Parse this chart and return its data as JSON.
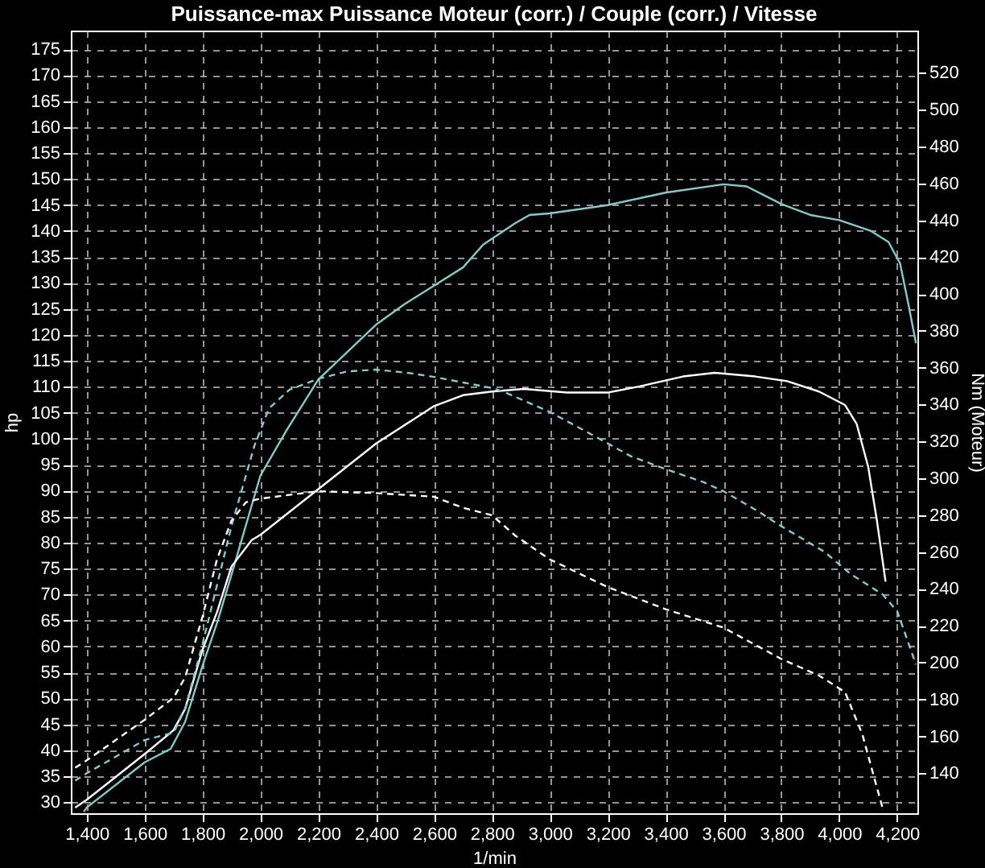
{
  "chart_data": {
    "type": "line",
    "title": "Puissance-max Puissance Moteur (corr.) / Couple (corr.) / Vitesse",
    "xlabel": "1/min",
    "ylabel": "hp",
    "y2label": "Nm (Moteur)",
    "xlim": [
      1345,
      4270
    ],
    "xticks": [
      {
        "value": 1400,
        "label": "1,400"
      },
      {
        "value": 1600,
        "label": "1,600"
      },
      {
        "value": 1800,
        "label": "1,800"
      },
      {
        "value": 2000,
        "label": "2,000"
      },
      {
        "value": 2200,
        "label": "2,200"
      },
      {
        "value": 2400,
        "label": "2,400"
      },
      {
        "value": 2600,
        "label": "2,600"
      },
      {
        "value": 2800,
        "label": "2,800"
      },
      {
        "value": 3000,
        "label": "3,000"
      },
      {
        "value": 3200,
        "label": "3,200"
      },
      {
        "value": 3400,
        "label": "3,400"
      },
      {
        "value": 3600,
        "label": "3,600"
      },
      {
        "value": 3800,
        "label": "3,800"
      },
      {
        "value": 4000,
        "label": "4,000"
      },
      {
        "value": 4200,
        "label": "4,200"
      }
    ],
    "ylim": [
      27.9,
      178.6
    ],
    "yticks": [
      30,
      35,
      40,
      45,
      50,
      55,
      60,
      65,
      70,
      75,
      80,
      85,
      90,
      95,
      100,
      105,
      110,
      115,
      120,
      125,
      130,
      135,
      140,
      145,
      150,
      155,
      160,
      165,
      170,
      175
    ],
    "y2lim": [
      118.3,
      542.9
    ],
    "y2ticks": [
      140,
      160,
      180,
      200,
      220,
      240,
      260,
      280,
      300,
      320,
      340,
      360,
      380,
      400,
      420,
      440,
      460,
      480,
      500,
      520
    ],
    "grid": true,
    "series": [
      {
        "color": "#80cccc",
        "line_style": "solid",
        "x": [
          1390,
          1400,
          1600,
          1690,
          1740,
          1800,
          1850,
          1900,
          2000,
          2090,
          2200,
          2400,
          2500,
          2600,
          2700,
          2770,
          2880,
          2930,
          3000,
          3200,
          3400,
          3600,
          3680,
          3800,
          3900,
          4000,
          4110,
          4170,
          4210,
          4240,
          4265
        ],
        "values": [
          28.2,
          29.0,
          37.7,
          40.3,
          45.5,
          56.3,
          64.5,
          73.8,
          92.9,
          101.6,
          111.4,
          122,
          126,
          129.5,
          133,
          137.4,
          141.5,
          143.1,
          143.4,
          145,
          147.4,
          149,
          148.6,
          145.2,
          143.1,
          142.1,
          140,
          137.9,
          133.8,
          125.6,
          118.4
        ]
      },
      {
        "color": "#ffffff",
        "line_style": "solid",
        "x": [
          1360,
          1400,
          1600,
          1700,
          1740,
          1800,
          1850,
          1900,
          1970,
          2000,
          2200,
          2400,
          2600,
          2700,
          2800,
          2910,
          3060,
          3200,
          3310,
          3460,
          3570,
          3710,
          3820,
          3930,
          4020,
          4060,
          4100,
          4130,
          4160
        ],
        "values": [
          29.0,
          30.5,
          39.3,
          43.9,
          48,
          59.4,
          66.6,
          75.4,
          80.5,
          81.5,
          90.3,
          99.1,
          106.3,
          108.4,
          109.1,
          109.6,
          108.9,
          108.9,
          110.1,
          112,
          112.7,
          112,
          111.1,
          109.1,
          106.5,
          102.9,
          94.6,
          84.3,
          72.5
        ]
      },
      {
        "axis": "y2",
        "color": "#80cccc",
        "line_style": "dashed",
        "x": [
          1360,
          1400,
          1600,
          1700,
          1740,
          1800,
          1850,
          1900,
          1980,
          2030,
          2100,
          2200,
          2300,
          2400,
          2520,
          2600,
          2700,
          2800,
          2840,
          3000,
          3130,
          3280,
          3400,
          3530,
          3600,
          3710,
          3800,
          3950,
          4040,
          4150,
          4200,
          4265
        ],
        "values": [
          136,
          140,
          158,
          162,
          175,
          210,
          242,
          274,
          318,
          338,
          348,
          354,
          358,
          359,
          357,
          355,
          352,
          349,
          347,
          336,
          325,
          312,
          305,
          298,
          293,
          283,
          274,
          260,
          248,
          237,
          228,
          199
        ]
      },
      {
        "axis": "y2",
        "color": "#ffffff",
        "line_style": "dashed",
        "x": [
          1360,
          1400,
          1600,
          1700,
          1740,
          1800,
          1850,
          1900,
          1950,
          2000,
          2200,
          2400,
          2600,
          2700,
          2800,
          2880,
          3000,
          3200,
          3400,
          3600,
          3800,
          3930,
          4020,
          4080,
          4120,
          4150
        ],
        "values": [
          143,
          147,
          169,
          181,
          192,
          225,
          256,
          277,
          287,
          289,
          293,
          292,
          290,
          284,
          280,
          269,
          256,
          241,
          229,
          219,
          202,
          193,
          184,
          161,
          138,
          121
        ]
      }
    ]
  }
}
